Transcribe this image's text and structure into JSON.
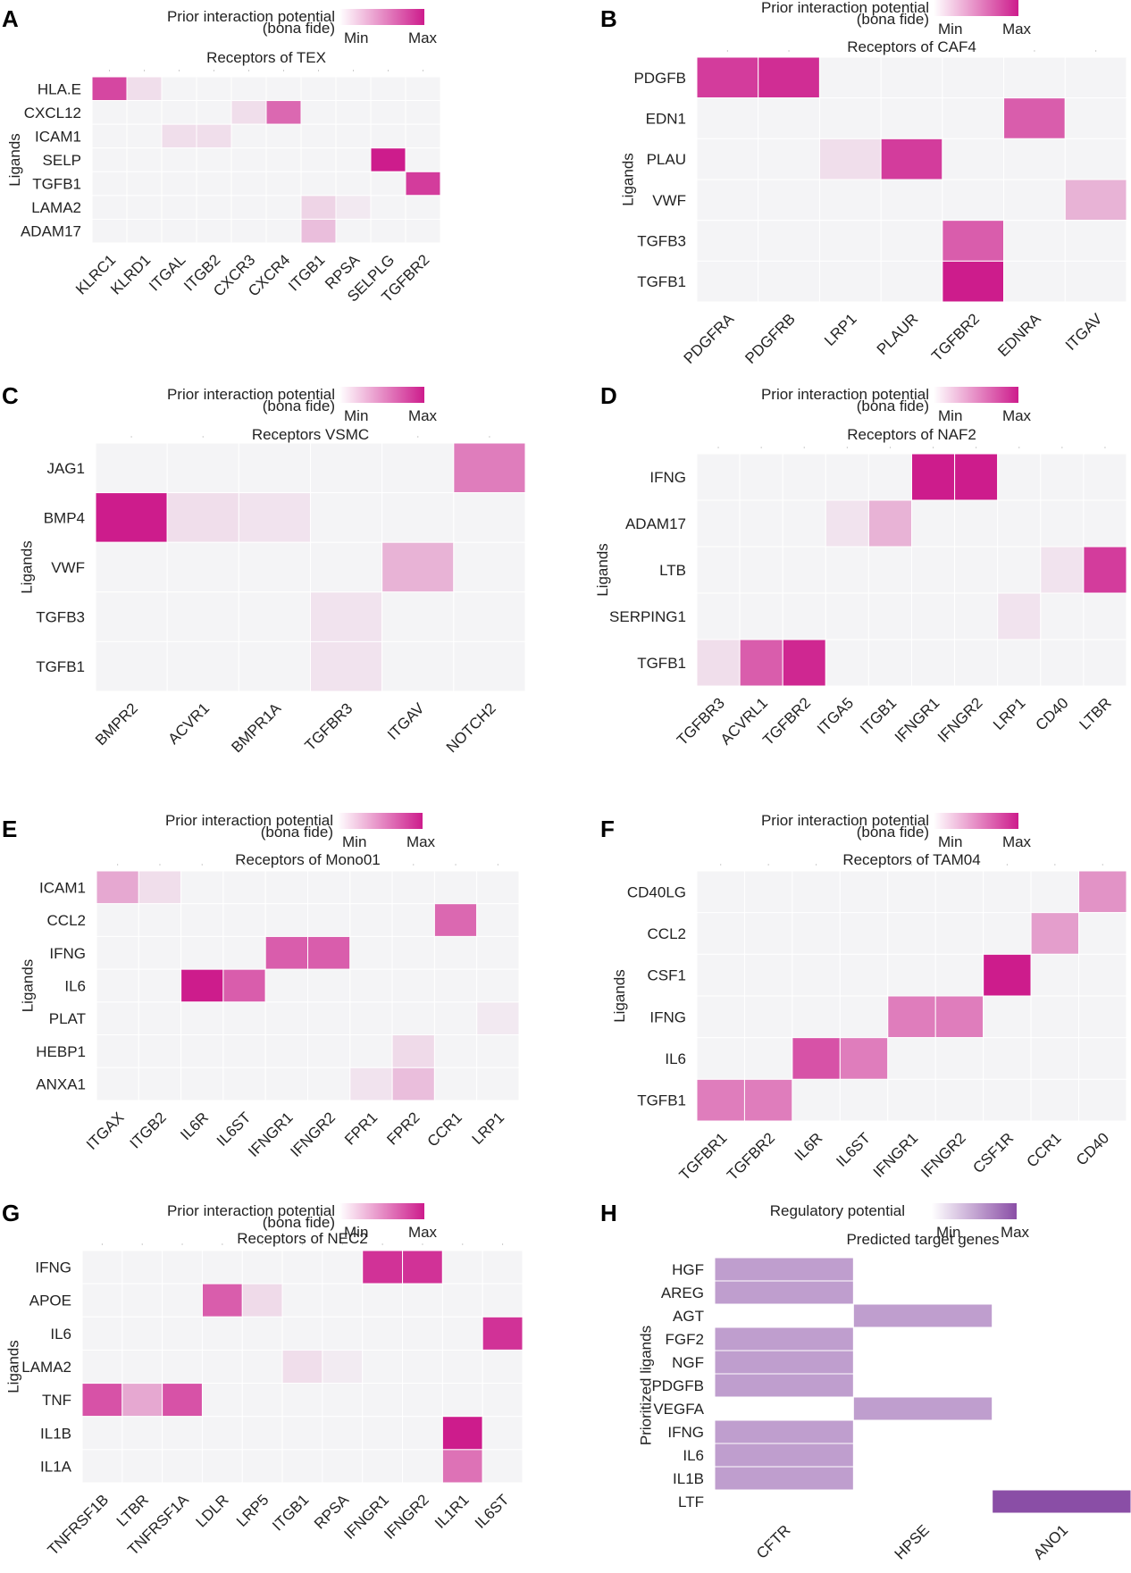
{
  "figure": {
    "description_label": "Ligand–receptor prior interaction potential heatmaps"
  },
  "colors": {
    "cell_bg": "#f4f4f6",
    "pink_max": "#cd1c8c",
    "purple_max": "#8a4ea6",
    "gridline": "#ffffff"
  },
  "chart_data": [
    {
      "panel": "A",
      "type": "heatmap",
      "title": "Receptors of TEX",
      "legend_title": [
        "Prior interaction potential",
        "(bona fide)"
      ],
      "legend_min": "Min",
      "legend_max": "Max",
      "ylabel": "Ligands",
      "rows": [
        "HLA.E",
        "CXCL12",
        "ICAM1",
        "SELP",
        "TGFB1",
        "LAMA2",
        "ADAM17"
      ],
      "cols": [
        "KLRC1",
        "KLRD1",
        "ITGAL",
        "ITGB2",
        "CXCR3",
        "CXCR4",
        "ITGB1",
        "RPSA",
        "SELPLG",
        "TGFBR2"
      ],
      "values": [
        [
          0.8,
          0.1,
          0,
          0,
          0,
          0,
          0,
          0,
          0,
          0
        ],
        [
          0,
          0,
          0,
          0,
          0.1,
          0.65,
          0,
          0,
          0,
          0
        ],
        [
          0,
          0,
          0.1,
          0.1,
          0,
          0,
          0,
          0,
          0,
          0
        ],
        [
          0,
          0,
          0,
          0,
          0,
          0,
          0,
          0,
          1.0,
          0
        ],
        [
          0,
          0,
          0,
          0,
          0,
          0,
          0,
          0,
          0,
          0.85
        ],
        [
          0,
          0,
          0,
          0,
          0,
          0,
          0.15,
          0.05,
          0,
          0
        ],
        [
          0,
          0,
          0,
          0,
          0,
          0,
          0.25,
          0,
          0,
          0
        ]
      ]
    },
    {
      "panel": "B",
      "type": "heatmap",
      "title": "Receptors of CAF4",
      "legend_title": [
        "Prior interaction potential",
        "(bona fide)"
      ],
      "legend_min": "Min",
      "legend_max": "Max",
      "ylabel": "Ligands",
      "rows": [
        "PDGFB",
        "EDN1",
        "PLAU",
        "VWF",
        "TGFB3",
        "TGFB1"
      ],
      "cols": [
        "PDGFRA",
        "PDGFRB",
        "LRP1",
        "PLAUR",
        "TGFBR2",
        "EDNRA",
        "ITGAV"
      ],
      "values": [
        [
          0.85,
          0.92,
          0,
          0,
          0,
          0,
          0
        ],
        [
          0,
          0,
          0,
          0,
          0,
          0.7,
          0
        ],
        [
          0,
          0,
          0.1,
          0.85,
          0,
          0,
          0
        ],
        [
          0,
          0,
          0,
          0,
          0,
          0,
          0.3
        ],
        [
          0,
          0,
          0,
          0,
          0.7,
          0,
          0
        ],
        [
          0,
          0,
          0,
          0,
          1.0,
          0,
          0
        ]
      ]
    },
    {
      "panel": "C",
      "type": "heatmap",
      "title": "Receptors VSMC",
      "legend_title": [
        "Prior interaction potential",
        "(bona fide)"
      ],
      "legend_min": "Min",
      "legend_max": "Max",
      "ylabel": "Ligands",
      "rows": [
        "JAG1",
        "BMP4",
        "VWF",
        "TGFB3",
        "TGFB1"
      ],
      "cols": [
        "BMPR2",
        "ACVR1",
        "BMPR1A",
        "TGFBR3",
        "ITGAV",
        "NOTCH2"
      ],
      "values": [
        [
          0,
          0,
          0,
          0,
          0,
          0.55
        ],
        [
          1.0,
          0.1,
          0.08,
          0,
          0,
          0
        ],
        [
          0,
          0,
          0,
          0,
          0.3,
          0
        ],
        [
          0,
          0,
          0,
          0.08,
          0,
          0
        ],
        [
          0,
          0,
          0,
          0.08,
          0,
          0
        ]
      ]
    },
    {
      "panel": "D",
      "type": "heatmap",
      "title": "Receptors of NAF2",
      "legend_title": [
        "Prior interaction potential",
        "(bona fide)"
      ],
      "legend_min": "Min",
      "legend_max": "Max",
      "ylabel": "Ligands",
      "rows": [
        "IFNG",
        "ADAM17",
        "LTB",
        "SERPING1",
        "TGFB1"
      ],
      "cols": [
        "TGFBR3",
        "ACVRL1",
        "TGFBR2",
        "ITGA5",
        "ITGB1",
        "IFNGR1",
        "IFNGR2",
        "LRP1",
        "CD40",
        "LTBR"
      ],
      "values": [
        [
          0,
          0,
          0,
          0,
          0,
          1.0,
          1.0,
          0,
          0,
          0
        ],
        [
          0,
          0,
          0,
          0.08,
          0.3,
          0,
          0,
          0,
          0,
          0
        ],
        [
          0,
          0,
          0,
          0,
          0,
          0,
          0,
          0,
          0.08,
          0.85
        ],
        [
          0,
          0,
          0,
          0,
          0,
          0,
          0,
          0.08,
          0,
          0
        ],
        [
          0.1,
          0.7,
          0.95,
          0,
          0,
          0,
          0,
          0,
          0,
          0
        ]
      ]
    },
    {
      "panel": "E",
      "type": "heatmap",
      "title": "Receptors of Mono01",
      "legend_title": [
        "Prior interaction potential",
        "(bona fide)"
      ],
      "legend_min": "Min",
      "legend_max": "Max",
      "ylabel": "Ligands",
      "rows": [
        "ICAM1",
        "CCL2",
        "IFNG",
        "IL6",
        "PLAT",
        "HEBP1",
        "ANXA1"
      ],
      "cols": [
        "ITGAX",
        "ITGB2",
        "IL6R",
        "IL6ST",
        "IFNGR1",
        "IFNGR2",
        "FPR1",
        "FPR2",
        "CCR1",
        "LRP1"
      ],
      "values": [
        [
          0.35,
          0.1,
          0,
          0,
          0,
          0,
          0,
          0,
          0,
          0
        ],
        [
          0,
          0,
          0,
          0,
          0,
          0,
          0,
          0,
          0.65,
          0
        ],
        [
          0,
          0,
          0,
          0,
          0.7,
          0.7,
          0,
          0,
          0,
          0
        ],
        [
          0,
          0,
          1.0,
          0.7,
          0,
          0,
          0,
          0,
          0,
          0
        ],
        [
          0,
          0,
          0,
          0,
          0,
          0,
          0,
          0,
          0,
          0.05
        ],
        [
          0,
          0,
          0,
          0,
          0,
          0,
          0,
          0.12,
          0,
          0
        ],
        [
          0,
          0,
          0,
          0,
          0,
          0,
          0.08,
          0.25,
          0,
          0
        ]
      ]
    },
    {
      "panel": "F",
      "type": "heatmap",
      "title": "Receptors of TAM04",
      "legend_title": [
        "Prior interaction potential",
        "(bona fide)"
      ],
      "legend_min": "Min",
      "legend_max": "Max",
      "ylabel": "Ligands",
      "rows": [
        "CD40LG",
        "CCL2",
        "CSF1",
        "IFNG",
        "IL6",
        "TGFB1"
      ],
      "cols": [
        "TGFBR1",
        "TGFBR2",
        "IL6R",
        "IL6ST",
        "IFNGR1",
        "IFNGR2",
        "CSF1R",
        "CCR1",
        "CD40"
      ],
      "values": [
        [
          0,
          0,
          0,
          0,
          0,
          0,
          0,
          0,
          0.45
        ],
        [
          0,
          0,
          0,
          0,
          0,
          0,
          0,
          0.4,
          0
        ],
        [
          0,
          0,
          0,
          0,
          0,
          0,
          1.0,
          0,
          0
        ],
        [
          0,
          0,
          0,
          0,
          0.55,
          0.55,
          0,
          0,
          0
        ],
        [
          0,
          0,
          0.75,
          0.55,
          0,
          0,
          0,
          0,
          0
        ],
        [
          0.55,
          0.55,
          0,
          0,
          0,
          0,
          0,
          0,
          0
        ]
      ]
    },
    {
      "panel": "G",
      "type": "heatmap",
      "title": "Receptors of NEC2",
      "legend_title": [
        "Prior interaction potential",
        "(bona fide)"
      ],
      "legend_min": "Min",
      "legend_max": "Max",
      "ylabel": "Ligands",
      "rows": [
        "IFNG",
        "APOE",
        "IL6",
        "LAMA2",
        "TNF",
        "IL1B",
        "IL1A"
      ],
      "cols": [
        "TNFRSF1B",
        "LTBR",
        "TNFRSF1A",
        "LDLR",
        "LRP5",
        "ITGB1",
        "RPSA",
        "IFNGR1",
        "IFNGR2",
        "IL1R1",
        "IL6ST"
      ],
      "values": [
        [
          0,
          0,
          0,
          0,
          0,
          0,
          0,
          0.9,
          0.9,
          0,
          0
        ],
        [
          0,
          0,
          0,
          0.7,
          0.12,
          0,
          0,
          0,
          0,
          0,
          0
        ],
        [
          0,
          0,
          0,
          0,
          0,
          0,
          0,
          0,
          0,
          0,
          0.9
        ],
        [
          0,
          0,
          0,
          0,
          0,
          0.1,
          0.04,
          0,
          0,
          0,
          0
        ],
        [
          0.75,
          0.35,
          0.75,
          0,
          0,
          0,
          0,
          0,
          0,
          0,
          0
        ],
        [
          0,
          0,
          0,
          0,
          0,
          0,
          0,
          0,
          0,
          1.0,
          0
        ],
        [
          0,
          0,
          0,
          0,
          0,
          0,
          0,
          0,
          0,
          0.6,
          0
        ]
      ]
    },
    {
      "panel": "H",
      "type": "heatmap",
      "title": "Predicted target genes",
      "legend_title": [
        "Regulatory potential"
      ],
      "legend_min": "Min",
      "legend_max": "Max",
      "ylabel": "Prioritized ligands",
      "rows": [
        "HGF",
        "AREG",
        "AGT",
        "FGF2",
        "NGF",
        "PDGFB",
        "VEGFA",
        "IFNG",
        "IL6",
        "IL1B",
        "LTF"
      ],
      "cols": [
        "CFTR",
        "HPSE",
        "ANO1"
      ],
      "values": [
        [
          0.55,
          0,
          0
        ],
        [
          0.55,
          0,
          0
        ],
        [
          0,
          0.55,
          0
        ],
        [
          0.55,
          0,
          0
        ],
        [
          0.55,
          0,
          0
        ],
        [
          0.55,
          0,
          0
        ],
        [
          0,
          0.55,
          0
        ],
        [
          0.55,
          0,
          0
        ],
        [
          0.55,
          0,
          0
        ],
        [
          0.55,
          0,
          0
        ],
        [
          0,
          0,
          1.0
        ]
      ]
    }
  ]
}
